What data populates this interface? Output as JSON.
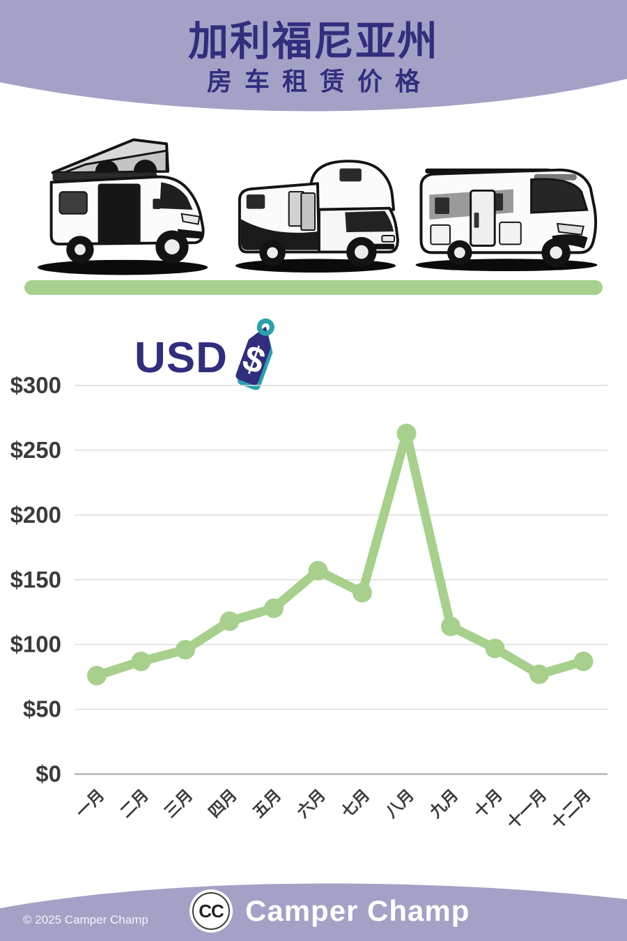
{
  "header": {
    "title": "加利福尼亚州",
    "subtitle": "房车租赁价格"
  },
  "currency_badge": {
    "label": "USD",
    "icon": "price-tag-dollar-icon",
    "tag_symbol": "$"
  },
  "hero": {
    "vehicles": [
      "campervan",
      "class-c-motorhome",
      "class-a-motorhome"
    ]
  },
  "chart_data": {
    "type": "line",
    "title": "加利福尼亚州 房车租赁价格 (USD)",
    "categories": [
      "一月",
      "二月",
      "三月",
      "四月",
      "五月",
      "六月",
      "七月",
      "八月",
      "九月",
      "十月",
      "十一月",
      "十二月"
    ],
    "values": [
      76,
      87,
      96,
      118,
      128,
      157,
      140,
      263,
      114,
      97,
      77,
      87
    ],
    "ylim": [
      0,
      300
    ],
    "ytick_step": 50,
    "ytick_prefix": "$",
    "ytick_labels": [
      "$0",
      "$50",
      "$100",
      "$150",
      "$200",
      "$250",
      "$300"
    ],
    "grid": true,
    "legend_position": "none",
    "marker": "circle"
  },
  "footer": {
    "logo_monogram": "CC",
    "brand": "Camper Champ",
    "copyright": "© 2025 Camper Champ"
  },
  "colors": {
    "lavender": "#a3a1c6",
    "navy": "#312e7d",
    "green": "#a6d08b",
    "teal": "#2aa0ac",
    "axis-text": "#3b3b39",
    "gridline": "#dcdcdc",
    "zero-line": "#b3b3b3"
  }
}
